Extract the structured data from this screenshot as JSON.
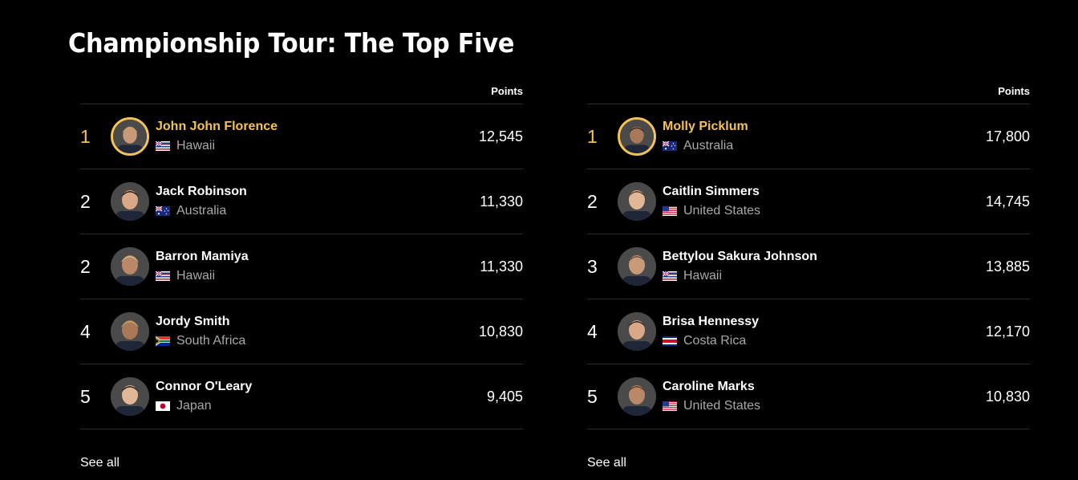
{
  "title": "Championship Tour: The Top Five",
  "points_header": "Points",
  "see_all": "See all",
  "accent_color": "#f3c35a",
  "men": [
    {
      "rank": "1",
      "name": "John John Florence",
      "country": "Hawaii",
      "flag": "hawaii-flag-icon",
      "points": "12,545"
    },
    {
      "rank": "2",
      "name": "Jack Robinson",
      "country": "Australia",
      "flag": "australia-flag-icon",
      "points": "11,330"
    },
    {
      "rank": "2",
      "name": "Barron Mamiya",
      "country": "Hawaii",
      "flag": "hawaii-flag-icon",
      "points": "11,330"
    },
    {
      "rank": "4",
      "name": "Jordy Smith",
      "country": "South Africa",
      "flag": "south-africa-flag-icon",
      "points": "10,830"
    },
    {
      "rank": "5",
      "name": "Connor O'Leary",
      "country": "Japan",
      "flag": "japan-flag-icon",
      "points": "9,405"
    }
  ],
  "women": [
    {
      "rank": "1",
      "name": "Molly Picklum",
      "country": "Australia",
      "flag": "australia-flag-icon",
      "points": "17,800"
    },
    {
      "rank": "2",
      "name": "Caitlin Simmers",
      "country": "United States",
      "flag": "usa-flag-icon",
      "points": "14,745"
    },
    {
      "rank": "3",
      "name": "Bettylou Sakura Johnson",
      "country": "Hawaii",
      "flag": "hawaii-flag-icon",
      "points": "13,885"
    },
    {
      "rank": "4",
      "name": "Brisa Hennessy",
      "country": "Costa Rica",
      "flag": "costa-rica-flag-icon",
      "points": "12,170"
    },
    {
      "rank": "5",
      "name": "Caroline Marks",
      "country": "United States",
      "flag": "usa-flag-icon",
      "points": "10,830"
    }
  ]
}
